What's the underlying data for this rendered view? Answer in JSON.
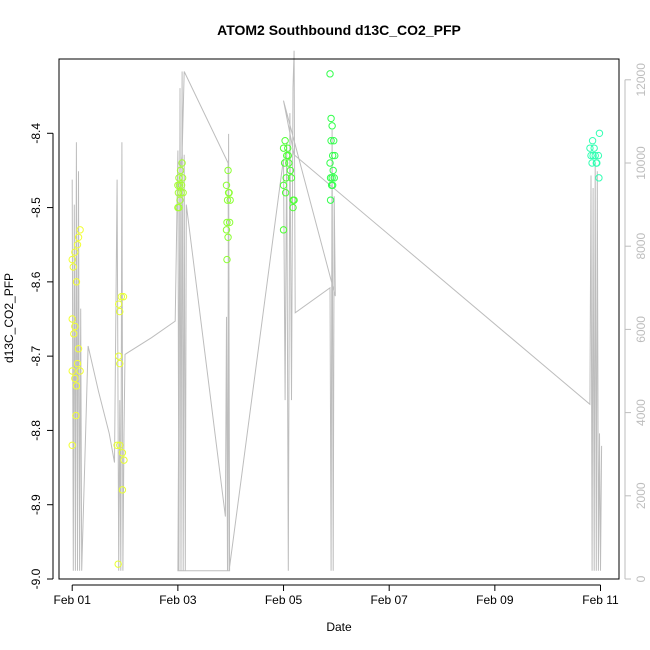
{
  "chart_data": {
    "type": "scatter",
    "title": "ATOM2 Southbound d13C_CO2_PFP",
    "xlabel": "Date",
    "ylabel": "d13C_CO2_PFP",
    "y2label": "",
    "x_ticks": [
      {
        "day": 1,
        "label": "Feb 01"
      },
      {
        "day": 3,
        "label": "Feb 03"
      },
      {
        "day": 5,
        "label": "Feb 05"
      },
      {
        "day": 7,
        "label": "Feb 07"
      },
      {
        "day": 9,
        "label": "Feb 09"
      },
      {
        "day": 11,
        "label": "Feb 11"
      }
    ],
    "xlim": [
      0.75,
      11.35
    ],
    "ylim": [
      -9.0,
      -8.3
    ],
    "y_ticks": [
      -9.0,
      -8.9,
      -8.8,
      -8.7,
      -8.6,
      -8.5,
      -8.4
    ],
    "y2lim": [
      0,
      12500
    ],
    "y2_ticks": [
      0,
      2000,
      4000,
      6000,
      8000,
      10000,
      12000
    ],
    "grid": false,
    "points": [
      {
        "x": 1.0,
        "y": -8.57,
        "color": "#f2ff33"
      },
      {
        "x": 1.02,
        "y": -8.58,
        "color": "#f2ff33"
      },
      {
        "x": 1.05,
        "y": -8.56,
        "color": "#f2ff33"
      },
      {
        "x": 1.08,
        "y": -8.6,
        "color": "#f2ff33"
      },
      {
        "x": 1.1,
        "y": -8.55,
        "color": "#f2ff33"
      },
      {
        "x": 1.12,
        "y": -8.54,
        "color": "#f2ff33"
      },
      {
        "x": 1.15,
        "y": -8.53,
        "color": "#f2ff33"
      },
      {
        "x": 1.0,
        "y": -8.65,
        "color": "#f2ff33"
      },
      {
        "x": 1.03,
        "y": -8.67,
        "color": "#f2ff33"
      },
      {
        "x": 1.05,
        "y": -8.66,
        "color": "#f2ff33"
      },
      {
        "x": 1.12,
        "y": -8.69,
        "color": "#f2ff33"
      },
      {
        "x": 1.1,
        "y": -8.71,
        "color": "#f2ff33"
      },
      {
        "x": 1.15,
        "y": -8.72,
        "color": "#f2ff33"
      },
      {
        "x": 1.0,
        "y": -8.72,
        "color": "#f2ff33"
      },
      {
        "x": 1.05,
        "y": -8.73,
        "color": "#f2ff33"
      },
      {
        "x": 1.08,
        "y": -8.74,
        "color": "#f2ff33"
      },
      {
        "x": 1.07,
        "y": -8.78,
        "color": "#f2ff33"
      },
      {
        "x": 1.0,
        "y": -8.82,
        "color": "#f2ff33"
      },
      {
        "x": 1.88,
        "y": -8.63,
        "color": "#e8ff33"
      },
      {
        "x": 1.93,
        "y": -8.62,
        "color": "#e8ff33"
      },
      {
        "x": 1.97,
        "y": -8.62,
        "color": "#e8ff33"
      },
      {
        "x": 1.9,
        "y": -8.64,
        "color": "#e8ff33"
      },
      {
        "x": 1.88,
        "y": -8.7,
        "color": "#e8ff33"
      },
      {
        "x": 1.9,
        "y": -8.71,
        "color": "#e8ff33"
      },
      {
        "x": 1.85,
        "y": -8.82,
        "color": "#e8ff33"
      },
      {
        "x": 1.9,
        "y": -8.82,
        "color": "#e8ff33"
      },
      {
        "x": 1.95,
        "y": -8.83,
        "color": "#e8ff33"
      },
      {
        "x": 1.98,
        "y": -8.84,
        "color": "#e8ff33"
      },
      {
        "x": 1.95,
        "y": -8.88,
        "color": "#e8ff33"
      },
      {
        "x": 1.87,
        "y": -8.98,
        "color": "#e8ff33"
      },
      {
        "x": 3.0,
        "y": -8.47,
        "color": "#a6ff33"
      },
      {
        "x": 3.02,
        "y": -8.46,
        "color": "#a6ff33"
      },
      {
        "x": 3.05,
        "y": -8.45,
        "color": "#a6ff33"
      },
      {
        "x": 3.08,
        "y": -8.44,
        "color": "#a6ff33"
      },
      {
        "x": 3.03,
        "y": -8.47,
        "color": "#a6ff33"
      },
      {
        "x": 3.06,
        "y": -8.48,
        "color": "#a6ff33"
      },
      {
        "x": 3.1,
        "y": -8.48,
        "color": "#a6ff33"
      },
      {
        "x": 3.01,
        "y": -8.48,
        "color": "#a6ff33"
      },
      {
        "x": 3.04,
        "y": -8.49,
        "color": "#a6ff33"
      },
      {
        "x": 3.07,
        "y": -8.47,
        "color": "#a6ff33"
      },
      {
        "x": 3.02,
        "y": -8.5,
        "color": "#a6ff33"
      },
      {
        "x": 3.0,
        "y": -8.5,
        "color": "#a6ff33"
      },
      {
        "x": 3.09,
        "y": -8.46,
        "color": "#a6ff33"
      },
      {
        "x": 3.95,
        "y": -8.45,
        "color": "#8cff33"
      },
      {
        "x": 3.92,
        "y": -8.47,
        "color": "#8cff33"
      },
      {
        "x": 3.97,
        "y": -8.48,
        "color": "#8cff33"
      },
      {
        "x": 3.99,
        "y": -8.49,
        "color": "#8cff33"
      },
      {
        "x": 3.94,
        "y": -8.49,
        "color": "#8cff33"
      },
      {
        "x": 3.96,
        "y": -8.48,
        "color": "#8cff33"
      },
      {
        "x": 3.93,
        "y": -8.52,
        "color": "#8cff33"
      },
      {
        "x": 3.98,
        "y": -8.52,
        "color": "#8cff33"
      },
      {
        "x": 3.92,
        "y": -8.53,
        "color": "#8cff33"
      },
      {
        "x": 3.95,
        "y": -8.54,
        "color": "#8cff33"
      },
      {
        "x": 3.93,
        "y": -8.57,
        "color": "#8cff33"
      },
      {
        "x": 5.0,
        "y": -8.42,
        "color": "#4dff33"
      },
      {
        "x": 5.03,
        "y": -8.41,
        "color": "#4dff33"
      },
      {
        "x": 5.06,
        "y": -8.43,
        "color": "#4dff33"
      },
      {
        "x": 5.08,
        "y": -8.42,
        "color": "#4dff33"
      },
      {
        "x": 5.1,
        "y": -8.44,
        "color": "#4dff33"
      },
      {
        "x": 5.13,
        "y": -8.45,
        "color": "#4dff33"
      },
      {
        "x": 5.02,
        "y": -8.44,
        "color": "#4dff33"
      },
      {
        "x": 5.05,
        "y": -8.46,
        "color": "#4dff33"
      },
      {
        "x": 5.09,
        "y": -8.43,
        "color": "#4dff33"
      },
      {
        "x": 5.15,
        "y": -8.46,
        "color": "#4dff33"
      },
      {
        "x": 5.0,
        "y": -8.47,
        "color": "#4dff33"
      },
      {
        "x": 5.04,
        "y": -8.48,
        "color": "#4dff33"
      },
      {
        "x": 5.18,
        "y": -8.49,
        "color": "#4dff33"
      },
      {
        "x": 5.2,
        "y": -8.49,
        "color": "#4dff33"
      },
      {
        "x": 5.18,
        "y": -8.5,
        "color": "#4dff33"
      },
      {
        "x": 5.0,
        "y": -8.53,
        "color": "#4dff33"
      },
      {
        "x": 5.88,
        "y": -8.32,
        "color": "#33ff4d"
      },
      {
        "x": 5.9,
        "y": -8.38,
        "color": "#33ff4d"
      },
      {
        "x": 5.92,
        "y": -8.39,
        "color": "#33ff4d"
      },
      {
        "x": 5.95,
        "y": -8.41,
        "color": "#33ff4d"
      },
      {
        "x": 5.9,
        "y": -8.41,
        "color": "#33ff4d"
      },
      {
        "x": 5.93,
        "y": -8.43,
        "color": "#33ff4d"
      },
      {
        "x": 5.97,
        "y": -8.43,
        "color": "#33ff4d"
      },
      {
        "x": 5.88,
        "y": -8.44,
        "color": "#33ff4d"
      },
      {
        "x": 5.94,
        "y": -8.45,
        "color": "#33ff4d"
      },
      {
        "x": 5.92,
        "y": -8.46,
        "color": "#33ff4d"
      },
      {
        "x": 5.89,
        "y": -8.46,
        "color": "#33ff4d"
      },
      {
        "x": 5.96,
        "y": -8.46,
        "color": "#33ff4d"
      },
      {
        "x": 5.91,
        "y": -8.47,
        "color": "#33ff4d"
      },
      {
        "x": 5.93,
        "y": -8.47,
        "color": "#33ff4d"
      },
      {
        "x": 5.89,
        "y": -8.49,
        "color": "#33ff4d"
      },
      {
        "x": 10.82,
        "y": -8.43,
        "color": "#33ffb3"
      },
      {
        "x": 10.84,
        "y": -8.44,
        "color": "#33ffb3"
      },
      {
        "x": 10.86,
        "y": -8.43,
        "color": "#33ffb3"
      },
      {
        "x": 10.9,
        "y": -8.43,
        "color": "#33ffb3"
      },
      {
        "x": 10.93,
        "y": -8.44,
        "color": "#33ffb3"
      },
      {
        "x": 10.96,
        "y": -8.43,
        "color": "#33ffb3"
      },
      {
        "x": 10.8,
        "y": -8.42,
        "color": "#33ffb3"
      },
      {
        "x": 10.85,
        "y": -8.41,
        "color": "#33ffb3"
      },
      {
        "x": 10.88,
        "y": -8.42,
        "color": "#33ffb3"
      },
      {
        "x": 10.92,
        "y": -8.44,
        "color": "#33ffb3"
      },
      {
        "x": 10.98,
        "y": -8.4,
        "color": "#33ffb3"
      },
      {
        "x": 10.97,
        "y": -8.46,
        "color": "#33ffb3"
      }
    ],
    "altitude_line": {
      "color": "#bdbdbd",
      "x": [
        1.0,
        1.02,
        1.04,
        1.06,
        1.08,
        1.1,
        1.12,
        1.14,
        1.16,
        1.18,
        1.3,
        1.5,
        1.7,
        1.8,
        1.85,
        1.88,
        1.9,
        1.92,
        1.94,
        1.96,
        1.98,
        2.0,
        2.5,
        2.95,
        3.0,
        3.02,
        3.04,
        3.06,
        3.08,
        3.1,
        3.12,
        3.14,
        3.16,
        3.9,
        3.92,
        3.94,
        3.96,
        3.98,
        3.0,
        3.04,
        3.08,
        3.12,
        3.95,
        3.97,
        5.0,
        5.03,
        5.06,
        5.09,
        5.12,
        5.15,
        5.18,
        5.2,
        5.22,
        5.88,
        5.9,
        5.92,
        5.94,
        5.96,
        5.98,
        5.0,
        5.2,
        10.8,
        10.82,
        10.84,
        10.86,
        10.88,
        10.9,
        10.92,
        10.94,
        10.96,
        10.98,
        11.0,
        11.02
      ],
      "y": [
        9600,
        200,
        9000,
        200,
        10500,
        200,
        9800,
        200,
        6500,
        200,
        5600,
        4500,
        3500,
        2800,
        9600,
        200,
        4300,
        200,
        10500,
        200,
        3500,
        5400,
        5800,
        6200,
        10300,
        200,
        11800,
        200,
        12200,
        200,
        10200,
        200,
        9000,
        1500,
        6300,
        200,
        10700,
        200,
        200,
        9800,
        10200,
        12200,
        10000,
        200,
        10100,
        4300,
        10500,
        200,
        11200,
        4300,
        11800,
        12700,
        6400,
        7000,
        200,
        10800,
        200,
        9200,
        6800,
        11500,
        10200,
        4200,
        9700,
        200,
        9400,
        200,
        10000,
        200,
        9800,
        200,
        3500,
        200,
        3200
      ]
    }
  }
}
